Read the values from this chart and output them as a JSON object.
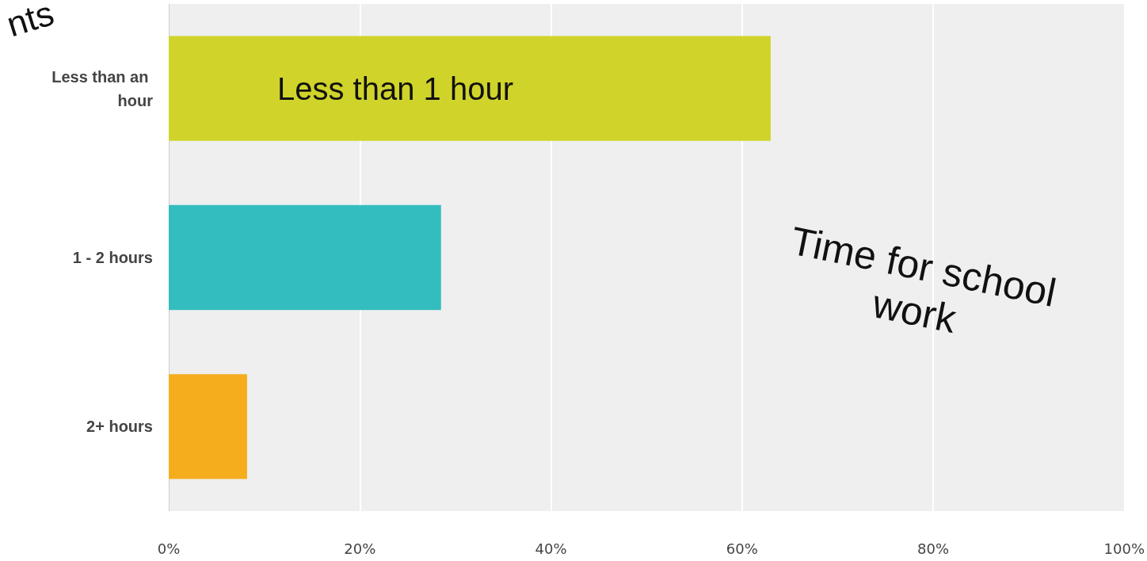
{
  "chart_data": {
    "type": "bar",
    "orientation": "horizontal",
    "categories": [
      "Less than an hour",
      "1 - 2 hours",
      "2+ hours"
    ],
    "values": [
      63.0,
      28.5,
      8.2
    ],
    "colors": [
      "#d0d42a",
      "#33bdbf",
      "#f5ad1e"
    ],
    "xlim": [
      0,
      100
    ],
    "xticks": [
      {
        "value": 0,
        "label": "0%"
      },
      {
        "value": 20,
        "label": "20%"
      },
      {
        "value": 40,
        "label": "40%"
      },
      {
        "value": 60,
        "label": "60%"
      },
      {
        "value": 80,
        "label": "80%"
      },
      {
        "value": 100,
        "label": "100%"
      }
    ],
    "grid": "x",
    "annotations": [
      "Less than 1 hour",
      "Time for school\nwork",
      "nts"
    ]
  }
}
